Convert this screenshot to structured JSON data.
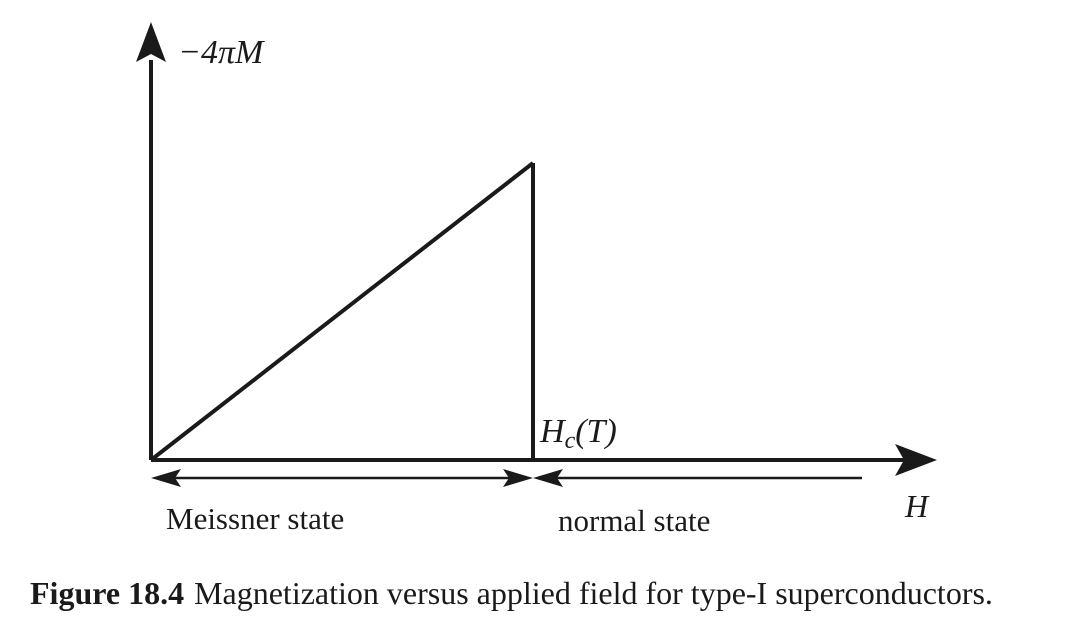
{
  "diagram": {
    "y_axis_label": "−4πM",
    "x_axis_label": "H",
    "critical_field": {
      "symbol": "H",
      "subscript": "c",
      "argument": "(T)"
    },
    "regions": {
      "left": "Meissner state",
      "right": "normal state"
    }
  },
  "caption": {
    "number": "Figure 18.4",
    "text": "Magnetization versus applied field for type-I superconductors."
  },
  "colors": {
    "ink": "#1a1a1a",
    "background": "#ffffff"
  }
}
